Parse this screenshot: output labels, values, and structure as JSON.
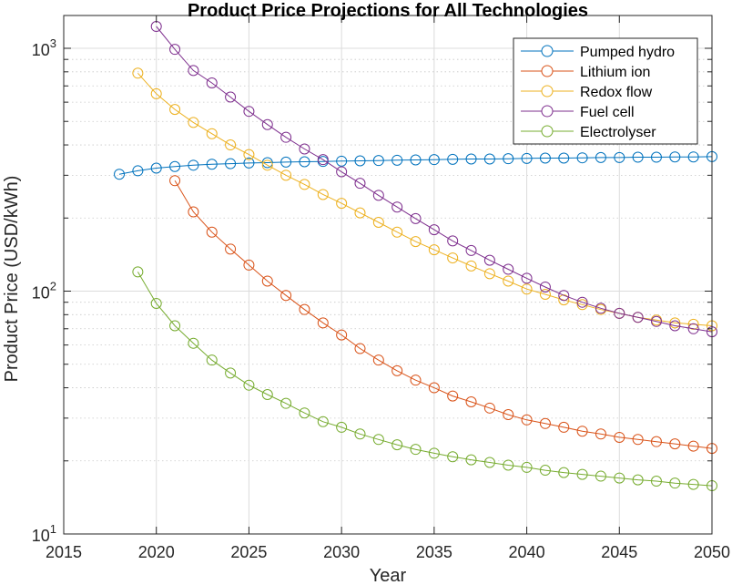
{
  "chart_data": {
    "type": "line",
    "title": "Product Price Projections for All Technologies",
    "xlabel": "Year",
    "ylabel": "Product Price (USD/kWh)",
    "xlim": [
      2015,
      2050
    ],
    "ylim": [
      10,
      1200
    ],
    "yscale": "log",
    "xticks": [
      2015,
      2020,
      2025,
      2030,
      2035,
      2040,
      2045,
      2050
    ],
    "yticks": [
      {
        "value": 10,
        "base": "10",
        "exp": "1"
      },
      {
        "value": 100,
        "base": "10",
        "exp": "2"
      },
      {
        "value": 1000,
        "base": "10",
        "exp": "3"
      }
    ],
    "grid": true,
    "legend_position": "top-right",
    "series": [
      {
        "name": "Pumped hydro",
        "color": "#0072BD",
        "marker": "circle",
        "x": [
          2018,
          2019,
          2020,
          2021,
          2022,
          2023,
          2024,
          2025,
          2026,
          2027,
          2028,
          2029,
          2030,
          2031,
          2032,
          2033,
          2034,
          2035,
          2036,
          2037,
          2038,
          2039,
          2040,
          2041,
          2042,
          2043,
          2044,
          2045,
          2046,
          2047,
          2048,
          2049,
          2050
        ],
        "y": [
          303,
          313,
          321,
          326,
          330,
          333,
          335,
          337,
          338,
          340,
          341,
          342,
          343,
          344,
          345,
          346,
          347,
          348,
          349,
          350,
          350,
          351,
          352,
          353,
          353,
          354,
          355,
          355,
          356,
          356,
          357,
          357,
          358
        ]
      },
      {
        "name": "Lithium ion",
        "color": "#D95319",
        "marker": "circle",
        "x": [
          2021,
          2022,
          2023,
          2024,
          2025,
          2026,
          2027,
          2028,
          2029,
          2030,
          2031,
          2032,
          2033,
          2034,
          2035,
          2036,
          2037,
          2038,
          2039,
          2040,
          2041,
          2042,
          2043,
          2044,
          2045,
          2046,
          2047,
          2048,
          2049,
          2050
        ],
        "y": [
          285,
          212,
          175,
          149,
          128,
          110,
          96,
          84,
          74,
          66,
          58,
          52,
          47,
          43,
          40,
          37,
          35,
          33,
          31,
          29.5,
          28.5,
          27.5,
          26.5,
          25.8,
          25,
          24.5,
          24,
          23.5,
          23,
          22.5
        ]
      },
      {
        "name": "Redox flow",
        "color": "#EDB120",
        "marker": "circle",
        "x": [
          2019,
          2020,
          2021,
          2022,
          2023,
          2024,
          2025,
          2026,
          2027,
          2028,
          2029,
          2030,
          2031,
          2032,
          2033,
          2034,
          2035,
          2036,
          2037,
          2038,
          2039,
          2040,
          2041,
          2042,
          2043,
          2044,
          2045,
          2046,
          2047,
          2048,
          2049,
          2050
        ],
        "y": [
          790,
          650,
          560,
          495,
          445,
          400,
          365,
          330,
          300,
          275,
          250,
          230,
          210,
          192,
          175,
          160,
          148,
          137,
          127,
          118,
          110,
          102,
          97,
          92,
          88,
          84,
          81,
          78,
          76,
          74,
          73,
          72
        ]
      },
      {
        "name": "Fuel cell",
        "color": "#7E2F8E",
        "marker": "circle",
        "x": [
          2020,
          2021,
          2022,
          2023,
          2024,
          2025,
          2026,
          2027,
          2028,
          2029,
          2030,
          2031,
          2032,
          2033,
          2034,
          2035,
          2036,
          2037,
          2038,
          2039,
          2040,
          2041,
          2042,
          2043,
          2044,
          2045,
          2046,
          2047,
          2048,
          2049,
          2050
        ],
        "y": [
          1230,
          990,
          810,
          720,
          630,
          550,
          485,
          430,
          385,
          348,
          310,
          278,
          248,
          222,
          199,
          179,
          161,
          147,
          134,
          123,
          113,
          104,
          96,
          90,
          85,
          81,
          78,
          75,
          72,
          70,
          68
        ]
      },
      {
        "name": "Electrolyser",
        "color": "#77AC30",
        "marker": "circle",
        "x": [
          2019,
          2020,
          2021,
          2022,
          2023,
          2024,
          2025,
          2026,
          2027,
          2028,
          2029,
          2030,
          2031,
          2032,
          2033,
          2034,
          2035,
          2036,
          2037,
          2038,
          2039,
          2040,
          2041,
          2042,
          2043,
          2044,
          2045,
          2046,
          2047,
          2048,
          2049,
          2050
        ],
        "y": [
          120,
          89,
          72,
          61,
          52,
          46,
          41,
          37.5,
          34.5,
          31.5,
          29,
          27.5,
          25.8,
          24.5,
          23.3,
          22.3,
          21.5,
          20.8,
          20.2,
          19.7,
          19.2,
          18.8,
          18.3,
          17.9,
          17.6,
          17.3,
          17,
          16.7,
          16.5,
          16.2,
          16,
          15.8
        ]
      }
    ]
  }
}
